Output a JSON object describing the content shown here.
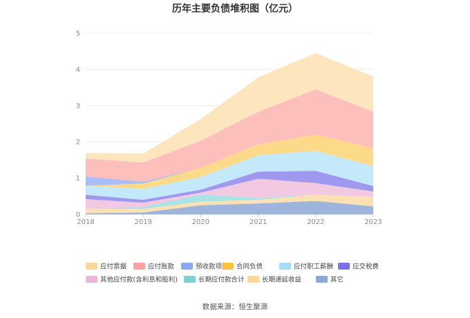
{
  "chart_data": {
    "type": "area",
    "stacked": true,
    "title": "历年主要负债堆积图（亿元）",
    "xlabel": "",
    "ylabel": "",
    "categories": [
      "2018",
      "2019",
      "2020",
      "2021",
      "2022",
      "2023"
    ],
    "ylim": [
      0,
      5
    ],
    "yticks": [
      "0",
      "1",
      "2",
      "3",
      "4",
      "5"
    ],
    "grid": true,
    "legend_position": "bottom",
    "series": [
      {
        "name": "其它",
        "color": "#9fb4dc",
        "values": [
          0.03,
          0.05,
          0.25,
          0.3,
          0.37,
          0.22
        ]
      },
      {
        "name": "长期递延收益",
        "color": "#fde1b2",
        "values": [
          0.12,
          0.1,
          0.1,
          0.1,
          0.17,
          0.26
        ]
      },
      {
        "name": "长期应付款合计",
        "color": "#a9e3e3",
        "values": [
          0.0,
          0.05,
          0.2,
          0.05,
          0.0,
          0.0
        ]
      },
      {
        "name": "其他应付款(含利息和股利)",
        "color": "#f2c9e1",
        "values": [
          0.27,
          0.12,
          0.05,
          0.53,
          0.32,
          0.15
        ]
      },
      {
        "name": "应交税费",
        "color": "#9e99ee",
        "values": [
          0.12,
          0.08,
          0.08,
          0.2,
          0.34,
          0.15
        ]
      },
      {
        "name": "应付职工薪酬",
        "color": "#c4e9fb",
        "values": [
          0.25,
          0.3,
          0.35,
          0.45,
          0.55,
          0.55
        ]
      },
      {
        "name": "合同负债",
        "color": "#fdd98a",
        "values": [
          0.0,
          0.15,
          0.25,
          0.3,
          0.45,
          0.5
        ]
      },
      {
        "name": "预收款项",
        "color": "#a9bdf8",
        "values": [
          0.25,
          0.05,
          0.0,
          0.0,
          0.0,
          0.0
        ]
      },
      {
        "name": "应付账款",
        "color": "#fdbfbb",
        "values": [
          0.5,
          0.53,
          0.75,
          0.9,
          1.25,
          1.0
        ]
      },
      {
        "name": "应付票据",
        "color": "#fde5bd",
        "values": [
          0.15,
          0.25,
          0.6,
          0.95,
          1.0,
          0.97
        ]
      }
    ],
    "legend": [
      {
        "name": "应付票据",
        "color": "#fdd79b"
      },
      {
        "name": "应付账款",
        "color": "#f9a49d"
      },
      {
        "name": "预收款项",
        "color": "#8ea7f4"
      },
      {
        "name": "合同负债",
        "color": "#fbc43c"
      },
      {
        "name": "应付职工薪酬",
        "color": "#a6dcf7"
      },
      {
        "name": "应交税费",
        "color": "#7a72e6"
      },
      {
        "name": "其他应付款(含利息和股利)",
        "color": "#ebb6d8"
      },
      {
        "name": "长期应付款合计",
        "color": "#7fd2d4"
      },
      {
        "name": "长期递延收益",
        "color": "#fdd69a"
      },
      {
        "name": "其它",
        "color": "#8aa8d8"
      }
    ]
  },
  "source": "数据来源：恒生聚源"
}
